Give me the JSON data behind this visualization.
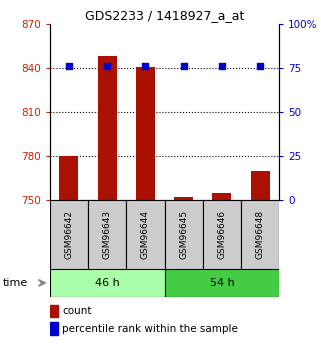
{
  "title": "GDS2233 / 1418927_a_at",
  "samples": [
    "GSM96642",
    "GSM96643",
    "GSM96644",
    "GSM96645",
    "GSM96646",
    "GSM96648"
  ],
  "count_values": [
    780,
    848,
    841,
    752,
    755,
    770
  ],
  "percentile_values": [
    76,
    76,
    76,
    76,
    76,
    76
  ],
  "ylim_left": [
    750,
    870
  ],
  "ylim_right": [
    0,
    100
  ],
  "yticks_left": [
    750,
    780,
    810,
    840,
    870
  ],
  "yticks_right": [
    0,
    25,
    50,
    75,
    100
  ],
  "ytick_labels_right": [
    "0",
    "25",
    "50",
    "75",
    "100%"
  ],
  "groups": [
    {
      "label": "46 h",
      "samples": [
        0,
        1,
        2
      ],
      "color": "#aaffaa"
    },
    {
      "label": "54 h",
      "samples": [
        3,
        4,
        5
      ],
      "color": "#44cc44"
    }
  ],
  "bar_color": "#aa1100",
  "dot_color": "#0000cc",
  "bar_width": 0.5,
  "left_label_color": "#cc2200",
  "right_label_color": "#0000cc"
}
